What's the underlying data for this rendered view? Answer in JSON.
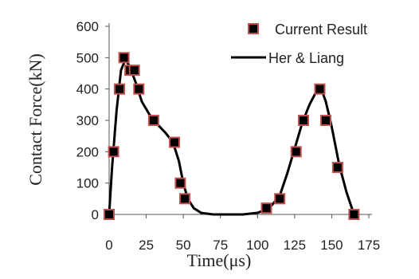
{
  "chart_data": {
    "type": "scatter",
    "xlabel": "Time(μs)",
    "ylabel": "Contact Force(kN)",
    "xlim": [
      0,
      175
    ],
    "ylim": [
      0,
      600
    ],
    "x_ticks": [
      "0",
      "25",
      "50",
      "75",
      "100",
      "125",
      "150",
      "175"
    ],
    "y_ticks": [
      "0",
      "100",
      "200",
      "300",
      "400",
      "500",
      "600"
    ],
    "grid": false,
    "legend_position": "top-right",
    "series": [
      {
        "name": "Current Result",
        "kind": "markers",
        "marker": "square",
        "fill_color": "#000000",
        "edge_color": "#c0504d",
        "x": [
          0,
          3,
          7,
          10,
          14,
          17,
          20,
          30,
          44,
          48,
          51,
          106,
          115,
          126,
          131,
          142,
          146,
          154,
          165
        ],
        "y": [
          0,
          200,
          400,
          500,
          460,
          460,
          400,
          300,
          230,
          100,
          50,
          20,
          50,
          200,
          300,
          400,
          300,
          150,
          0
        ]
      },
      {
        "name": "Her & Liang",
        "kind": "line",
        "color": "#000000",
        "x": [
          0,
          2,
          5,
          8,
          11,
          14,
          18,
          22,
          27,
          32,
          38,
          43,
          47,
          50,
          53,
          57,
          62,
          70,
          80,
          90,
          100,
          108,
          115,
          120,
          125,
          130,
          135,
          140,
          143,
          146,
          150,
          155,
          160,
          165
        ],
        "y": [
          0,
          150,
          330,
          460,
          495,
          470,
          420,
          360,
          320,
          290,
          260,
          230,
          170,
          100,
          50,
          20,
          5,
          0,
          0,
          0,
          5,
          20,
          60,
          130,
          210,
          290,
          350,
          395,
          400,
          360,
          280,
          160,
          70,
          0
        ]
      }
    ]
  }
}
